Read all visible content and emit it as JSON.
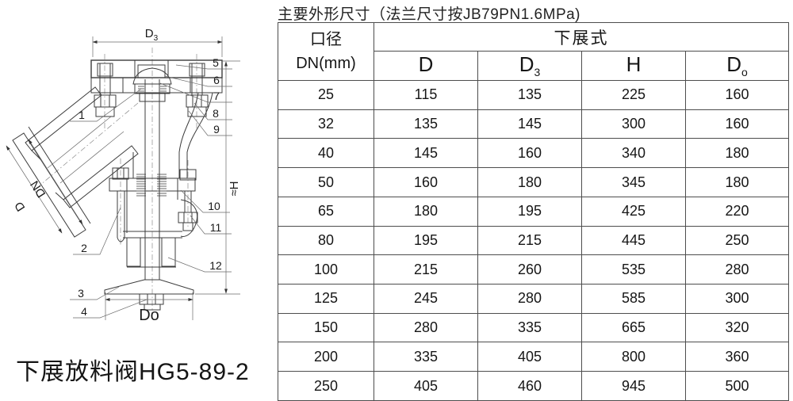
{
  "page": {
    "title": "主要外形尺寸（法兰尺寸按JB79PN1.6MPa)",
    "caption": "下展放料阀HG5-89-2"
  },
  "drawing": {
    "dim_top": {
      "base": "D",
      "sub": "3"
    },
    "dim_inlet_bore": "DN",
    "dim_inlet_flange": "D",
    "dim_height": "≈H",
    "dim_bottom": "Do",
    "part_numbers": [
      "1",
      "2",
      "3",
      "4",
      "5",
      "6",
      "7",
      "8",
      "9",
      "10",
      "11",
      "12"
    ]
  },
  "table": {
    "col_diameter_line1": "口径",
    "col_diameter_line2": "DN(mm)",
    "group_header": "下展式",
    "columns": [
      {
        "base": "D",
        "sub": ""
      },
      {
        "base": "D",
        "sub": "3"
      },
      {
        "base": "H",
        "sub": ""
      },
      {
        "base": "D",
        "sub": "o"
      }
    ],
    "rows": [
      [
        "25",
        "115",
        "135",
        "225",
        "160"
      ],
      [
        "32",
        "135",
        "145",
        "300",
        "160"
      ],
      [
        "40",
        "145",
        "160",
        "340",
        "180"
      ],
      [
        "50",
        "160",
        "180",
        "345",
        "180"
      ],
      [
        "65",
        "180",
        "195",
        "425",
        "220"
      ],
      [
        "80",
        "195",
        "215",
        "445",
        "250"
      ],
      [
        "100",
        "215",
        "260",
        "535",
        "280"
      ],
      [
        "125",
        "245",
        "280",
        "585",
        "300"
      ],
      [
        "150",
        "280",
        "335",
        "665",
        "320"
      ],
      [
        "200",
        "335",
        "405",
        "800",
        "360"
      ],
      [
        "250",
        "405",
        "460",
        "945",
        "500"
      ]
    ]
  }
}
